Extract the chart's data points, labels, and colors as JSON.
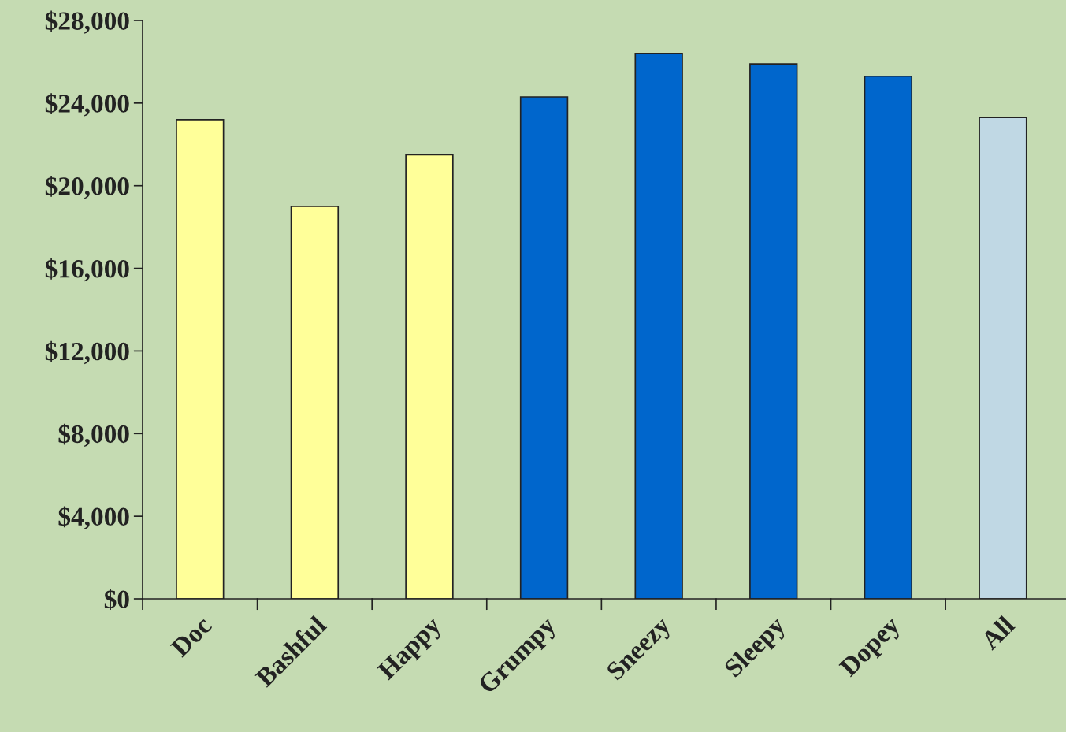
{
  "chart_data": {
    "type": "bar",
    "categories": [
      "Doc",
      "Bashful",
      "Happy",
      "Grumpy",
      "Sneezy",
      "Sleepy",
      "Dopey",
      "All"
    ],
    "values": [
      23200,
      19000,
      21500,
      24300,
      26400,
      25900,
      25300,
      23300
    ],
    "colors": [
      "#ffff99",
      "#ffff99",
      "#ffff99",
      "#0066cc",
      "#0066cc",
      "#0066cc",
      "#0066cc",
      "#c0d8e4"
    ],
    "ylim": [
      0,
      28000
    ],
    "yticks": [
      {
        "value": 0,
        "label": "$0"
      },
      {
        "value": 4000,
        "label": "$4,000"
      },
      {
        "value": 8000,
        "label": "$8,000"
      },
      {
        "value": 12000,
        "label": "$12,000"
      },
      {
        "value": 16000,
        "label": "$16,000"
      },
      {
        "value": 20000,
        "label": "$20,000"
      },
      {
        "value": 24000,
        "label": "$24,000"
      },
      {
        "value": 28000,
        "label": "$28,000"
      }
    ],
    "grid": false,
    "legend": false
  }
}
